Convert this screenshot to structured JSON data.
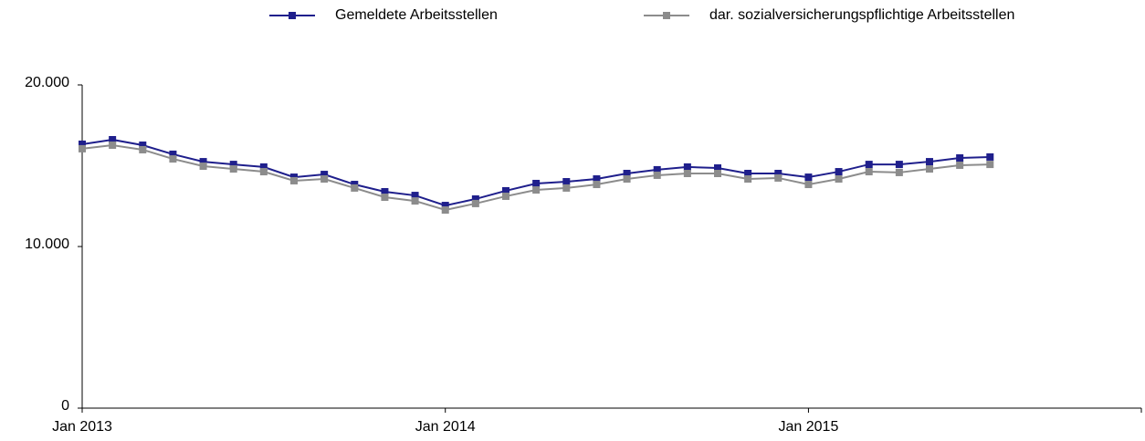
{
  "chart_data": {
    "type": "line",
    "categories": [
      "Jan 2013",
      null,
      null,
      null,
      null,
      null,
      null,
      null,
      null,
      null,
      null,
      null,
      "Jan 2014",
      null,
      null,
      null,
      null,
      null,
      null,
      null,
      null,
      null,
      null,
      null,
      "Jan 2015",
      null,
      null,
      null,
      null,
      null,
      null,
      null,
      null,
      null,
      null,
      null
    ],
    "series": [
      {
        "name": "Gemeldete Arbeitsstellen",
        "color": "#1f1f8c",
        "values": [
          16330,
          16610,
          16270,
          15710,
          15250,
          15080,
          14920,
          14290,
          14460,
          13840,
          13390,
          13160,
          12540,
          12940,
          13450,
          13900,
          14010,
          14180,
          14520,
          14750,
          14920,
          14860,
          14520,
          14520,
          14290,
          14630,
          15080,
          15080,
          15250,
          15480,
          15540,
          null,
          null,
          null,
          null,
          null
        ]
      },
      {
        "name": "dar. sozialversicherungspflichtige Arbeitsstellen",
        "color": "#8c8c8c",
        "values": [
          16050,
          16270,
          15990,
          15420,
          14970,
          14800,
          14630,
          14070,
          14180,
          13620,
          13050,
          12820,
          12260,
          12660,
          13110,
          13500,
          13620,
          13840,
          14180,
          14410,
          14520,
          14520,
          14180,
          14240,
          13840,
          14180,
          14630,
          14580,
          14800,
          15030,
          15080,
          null,
          null,
          null,
          null,
          null
        ]
      }
    ],
    "ylim": [
      0,
      20000
    ],
    "yticks": [
      0,
      {
        "value": 10000,
        "label": "10.000"
      },
      {
        "value": 20000,
        "label": "20.000"
      }
    ],
    "legend": "top"
  }
}
